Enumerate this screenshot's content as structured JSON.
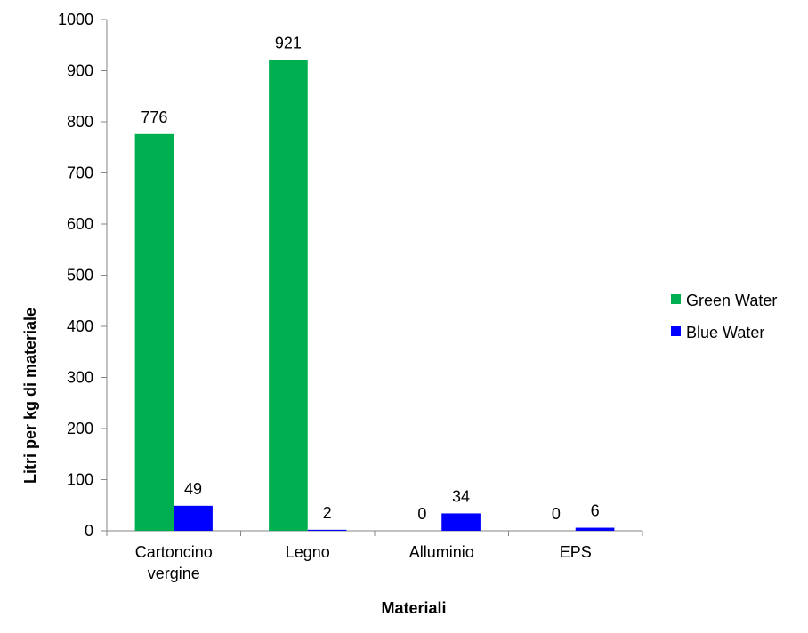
{
  "chart_data": {
    "type": "bar",
    "categories": [
      [
        "Cartoncino",
        "vergine"
      ],
      [
        "Legno"
      ],
      [
        "Alluminio"
      ],
      [
        "EPS"
      ]
    ],
    "series": [
      {
        "name": "Green Water",
        "color": "#00b050",
        "values": [
          776,
          921,
          0,
          0
        ],
        "labels": [
          "776",
          "921",
          "0",
          "0"
        ]
      },
      {
        "name": "Blue Water",
        "color": "#0000ff",
        "values": [
          49,
          2,
          34,
          6
        ],
        "labels": [
          "49",
          "2",
          "34",
          "6"
        ]
      }
    ],
    "xlabel": "Materiali",
    "ylabel": "Litri per kg di materiale",
    "ylim": [
      0,
      1000
    ],
    "yticks": [
      0,
      100,
      200,
      300,
      400,
      500,
      600,
      700,
      800,
      900,
      1000
    ],
    "grid": false,
    "legend_position": "right"
  }
}
